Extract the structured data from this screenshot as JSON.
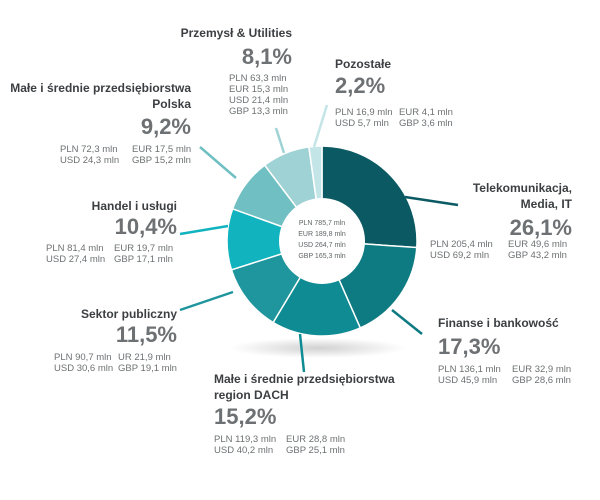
{
  "chart_data": {
    "type": "pie",
    "center": {
      "values": [
        "PLN 785,7 mln",
        "EUR 189,8 mln",
        "USD 264,7 mln",
        "GBP 165,3 mln"
      ]
    },
    "segments": [
      {
        "name": [
          "Telekomunikacja,",
          "Media, IT"
        ],
        "value": 26.1,
        "pct_label": "26,1%",
        "values": [
          "PLN 205,4 mln",
          "EUR 49,6 mln",
          "USD 69,2 mln",
          "GBP 43,2 mln"
        ],
        "color": "#0b5a63"
      },
      {
        "name": [
          "Finanse i bankowość"
        ],
        "value": 17.3,
        "pct_label": "17,3%",
        "values": [
          "PLN 136,1 mln",
          "EUR 32,9 mln",
          "USD 45,9 mln",
          "GBP 28,6 mln"
        ],
        "color": "#0e7a82"
      },
      {
        "name": [
          "Małe i średnie przedsiębiorstwa",
          "region DACH"
        ],
        "value": 15.2,
        "pct_label": "15,2%",
        "values": [
          "PLN 119,3 mln",
          "EUR 28,8 mln",
          "USD 40,2 mln",
          "GBP 25,1 mln"
        ],
        "color": "#0f8b93"
      },
      {
        "name": [
          "Sektor publiczny"
        ],
        "value": 11.5,
        "pct_label": "11,5%",
        "values": [
          "PLN 90,7 mln",
          "UR 21,9 mln",
          "USD 30,6 mln",
          "GBP 19,1 mln"
        ],
        "color": "#1f959d"
      },
      {
        "name": [
          "Handel i usługi"
        ],
        "value": 10.4,
        "pct_label": "10,4%",
        "values": [
          "PLN 81,4 mln",
          "EUR 19,7 mln",
          "USD 27,4 mln",
          "GBP 17,1 mln"
        ],
        "color": "#10b3be"
      },
      {
        "name": [
          "Małe i średnie przedsiębiorstwa",
          "Polska"
        ],
        "value": 9.2,
        "pct_label": "9,2%",
        "values": [
          "PLN 72,3 mln",
          "EUR 17,5 mln",
          "USD 24,3 mln",
          "GBP 15,2 mln"
        ],
        "color": "#6fbfc3"
      },
      {
        "name": [
          "Przemysł & Utilities"
        ],
        "value": 8.1,
        "pct_label": "8,1%",
        "values": [
          "PLN 63,3 mln",
          "EUR 15,3 mln",
          "USD 21,4 mln",
          "GBP 13,3 mln"
        ],
        "color": "#9fd2d5"
      },
      {
        "name": [
          "Pozostałe"
        ],
        "value": 2.2,
        "pct_label": "2,2%",
        "values": [
          "PLN 16,9 mln",
          "EUR 4,1 mln",
          "USD 5,7 mln",
          "GBP 3,6 mln"
        ],
        "color": "#c4e5e7"
      }
    ]
  }
}
